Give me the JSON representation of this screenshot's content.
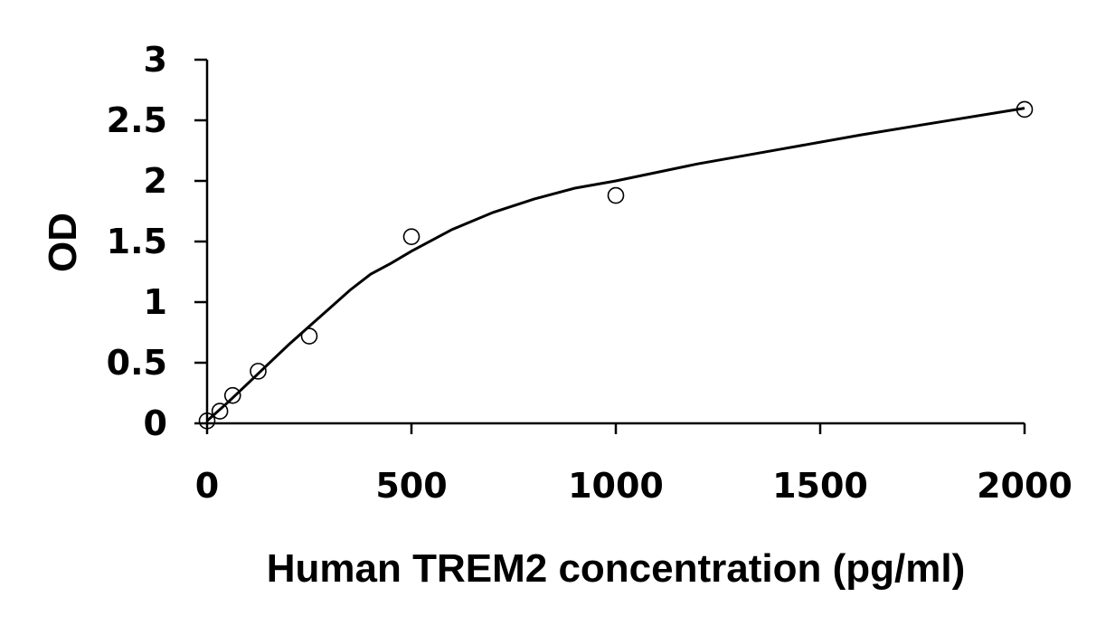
{
  "chart_data": {
    "type": "scatter",
    "title": "",
    "xlabel": "Human TREM2 concentration (pg/ml)",
    "ylabel": "OD",
    "xlim": [
      0,
      2000
    ],
    "ylim": [
      0,
      3
    ],
    "x_ticks": [
      "0",
      "500",
      "1000",
      "1500",
      "2000"
    ],
    "y_ticks": [
      "0",
      "0.5",
      "1",
      "1.5",
      "2",
      "2.5",
      "3"
    ],
    "x_tick_values": [
      0,
      500,
      1000,
      1500,
      2000
    ],
    "y_tick_values": [
      0,
      0.5,
      1,
      1.5,
      2,
      2.5,
      3
    ],
    "grid": false,
    "legend": "none",
    "series": [
      {
        "marker": "open-circle",
        "x": [
          0,
          31.25,
          62.5,
          125,
          250,
          500,
          1000,
          2000
        ],
        "y": [
          0.02,
          0.1,
          0.23,
          0.43,
          0.72,
          1.54,
          1.88,
          2.59
        ]
      }
    ],
    "fit_curve": {
      "style": "solid-black",
      "x": [
        0,
        50,
        100,
        150,
        200,
        250,
        300,
        350,
        400,
        450,
        500,
        600,
        700,
        800,
        900,
        1000,
        1200,
        1400,
        1600,
        1800,
        2000
      ],
      "y": [
        0.02,
        0.17,
        0.33,
        0.49,
        0.65,
        0.8,
        0.95,
        1.1,
        1.23,
        1.32,
        1.42,
        1.6,
        1.74,
        1.85,
        1.94,
        2.0,
        2.14,
        2.26,
        2.38,
        2.49,
        2.6
      ]
    }
  }
}
